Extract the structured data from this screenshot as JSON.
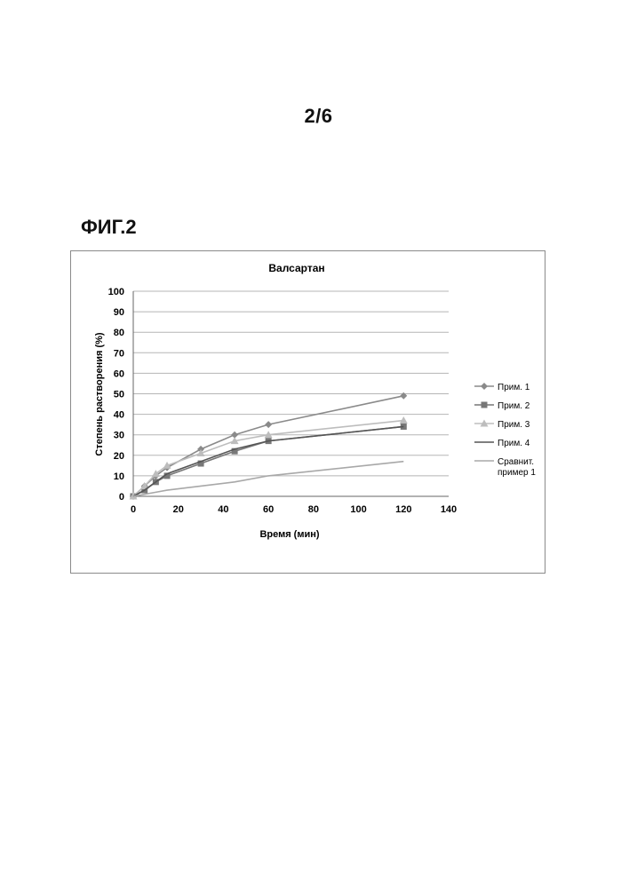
{
  "page": {
    "number": "2/6",
    "figure_label": "ФИГ.2"
  },
  "chart_data": {
    "type": "line",
    "title": "Валсартан",
    "xlabel": "Время (мин)",
    "ylabel": "Степень растворения (%)",
    "xlim": [
      0,
      140
    ],
    "ylim": [
      0,
      100
    ],
    "xticks": [
      0,
      20,
      40,
      60,
      80,
      100,
      120,
      140
    ],
    "yticks": [
      0,
      10,
      20,
      30,
      40,
      50,
      60,
      70,
      80,
      90,
      100
    ],
    "grid": true,
    "legend_position": "right",
    "series": [
      {
        "name": "Прим. 1",
        "color": "#8a8a8a",
        "marker": "diamond",
        "x": [
          0,
          5,
          10,
          15,
          30,
          45,
          60,
          120
        ],
        "y": [
          0,
          5,
          10,
          14,
          23,
          30,
          35,
          49
        ]
      },
      {
        "name": "Прим. 2",
        "color": "#777777",
        "marker": "square",
        "x": [
          0,
          5,
          10,
          15,
          30,
          45,
          60,
          120
        ],
        "y": [
          0,
          3,
          7,
          10,
          16,
          22,
          27,
          34
        ]
      },
      {
        "name": "Прим. 3",
        "color": "#bdbdbd",
        "marker": "triangle",
        "x": [
          0,
          5,
          10,
          15,
          30,
          45,
          60,
          120
        ],
        "y": [
          0,
          5,
          11,
          15,
          21,
          27,
          30,
          37
        ]
      },
      {
        "name": "Прим. 4",
        "color": "#555555",
        "marker": "none",
        "x": [
          0,
          5,
          10,
          15,
          30,
          45,
          60,
          120
        ],
        "y": [
          0,
          3,
          7,
          11,
          17,
          23,
          27,
          34
        ]
      },
      {
        "name": "Сравнит.\nпример 1",
        "name_lines": [
          "Сравнит.",
          "пример 1"
        ],
        "color": "#a8a8a8",
        "marker": "none",
        "x": [
          0,
          5,
          10,
          15,
          30,
          45,
          60,
          120
        ],
        "y": [
          0,
          1,
          2,
          3,
          5,
          7,
          10,
          17
        ]
      }
    ]
  }
}
